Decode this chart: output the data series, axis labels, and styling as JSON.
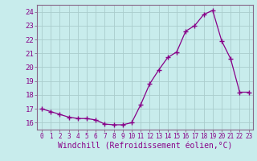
{
  "x": [
    0,
    1,
    2,
    3,
    4,
    5,
    6,
    7,
    8,
    9,
    10,
    11,
    12,
    13,
    14,
    15,
    16,
    17,
    18,
    19,
    20,
    21,
    22,
    23
  ],
  "y": [
    17.0,
    16.8,
    16.6,
    16.4,
    16.3,
    16.3,
    16.2,
    15.9,
    15.85,
    15.85,
    16.0,
    17.3,
    18.8,
    19.8,
    20.7,
    21.1,
    22.6,
    23.0,
    23.8,
    24.1,
    21.9,
    20.6,
    18.2,
    18.2
  ],
  "line_color": "#880088",
  "marker": "+",
  "bg_color": "#c8ecec",
  "grid_color": "#aacccc",
  "xlabel": "Windchill (Refroidissement éolien,°C)",
  "ylabel_values": [
    16,
    17,
    18,
    19,
    20,
    21,
    22,
    23,
    24
  ],
  "ylim": [
    15.5,
    24.5
  ],
  "xlim": [
    -0.5,
    23.5
  ]
}
